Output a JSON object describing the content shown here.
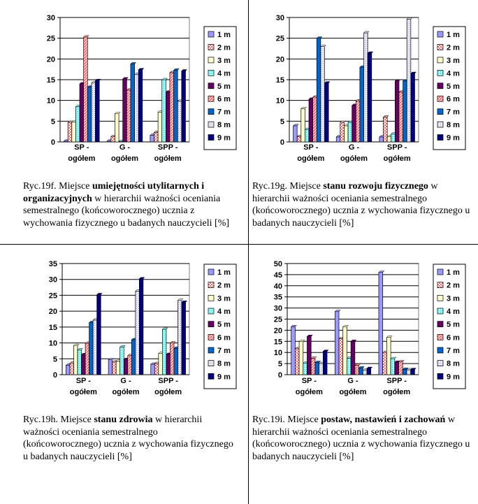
{
  "legend_labels": [
    "1 m",
    "2 m",
    "3 m",
    "4 m",
    "5 m",
    "6 m",
    "7 m",
    "8 m",
    "9 m"
  ],
  "series_colors": [
    "#9999ff",
    "#ffffff",
    "#ffffcc",
    "#ccffff",
    "#660066",
    "#ff8080",
    "#0066cc",
    "#ccccff",
    "#000080"
  ],
  "series_patterns": [
    "solid",
    "pink-check",
    "solid",
    "cyan-dots",
    "solid",
    "red-stripe",
    "solid",
    "light-dots",
    "solid"
  ],
  "categories": [
    [
      "SP -",
      "ogółem"
    ],
    [
      "G -",
      "ogółem"
    ],
    [
      "SPP -",
      "ogółem"
    ]
  ],
  "chart_data": [
    {
      "type": "bar",
      "categories": [
        "SP - ogółem",
        "G - ogółem",
        "SPP - ogółem"
      ],
      "ylim": [
        0,
        30
      ],
      "yticks": [
        0,
        5,
        10,
        15,
        20,
        25,
        30
      ],
      "series": [
        {
          "name": "1 m",
          "values": [
            0.2,
            0.2,
            1.6
          ]
        },
        {
          "name": "2 m",
          "values": [
            4.7,
            1.3,
            2.3
          ]
        },
        {
          "name": "3 m",
          "values": [
            4.8,
            6.8,
            7.2
          ]
        },
        {
          "name": "4 m",
          "values": [
            8.5,
            0.1,
            15.0
          ]
        },
        {
          "name": "5 m",
          "values": [
            14.0,
            15.2,
            12.0
          ]
        },
        {
          "name": "6 m",
          "values": [
            25.3,
            12.5,
            16.7
          ]
        },
        {
          "name": "7 m",
          "values": [
            13.2,
            18.8,
            17.3
          ]
        },
        {
          "name": "8 m",
          "values": [
            14.2,
            16.3,
            9.8
          ]
        },
        {
          "name": "9 m",
          "values": [
            14.8,
            17.4,
            17.1
          ]
        }
      ]
    },
    {
      "type": "bar",
      "categories": [
        "SP - ogółem",
        "G - ogółem",
        "SPP - ogółem"
      ],
      "ylim": [
        0,
        30
      ],
      "yticks": [
        0,
        5,
        10,
        15,
        20,
        25,
        30
      ],
      "series": [
        {
          "name": "1 m",
          "values": [
            3.9,
            1.2,
            1.2
          ]
        },
        {
          "name": "2 m",
          "values": [
            1.3,
            4.7,
            6.0
          ]
        },
        {
          "name": "3 m",
          "values": [
            8.0,
            3.9,
            1.3
          ]
        },
        {
          "name": "4 m",
          "values": [
            3.0,
            4.7,
            1.9
          ]
        },
        {
          "name": "5 m",
          "values": [
            10.3,
            8.8,
            14.7
          ]
        },
        {
          "name": "6 m",
          "values": [
            10.8,
            9.9,
            12.0
          ]
        },
        {
          "name": "7 m",
          "values": [
            25.0,
            18.0,
            14.7
          ]
        },
        {
          "name": "8 m",
          "values": [
            23.0,
            26.3,
            29.6
          ]
        },
        {
          "name": "9 m",
          "values": [
            14.2,
            21.4,
            16.5
          ]
        }
      ]
    },
    {
      "type": "bar",
      "categories": [
        "SP - ogółem",
        "G - ogółem",
        "SPP - ogółem"
      ],
      "ylim": [
        0,
        35
      ],
      "yticks": [
        0,
        5,
        10,
        15,
        20,
        25,
        30,
        35
      ],
      "series": [
        {
          "name": "1 m",
          "values": [
            3.0,
            4.7,
            3.3
          ]
        },
        {
          "name": "2 m",
          "values": [
            3.7,
            4.0,
            3.5
          ]
        },
        {
          "name": "3 m",
          "values": [
            9.2,
            4.2,
            6.7
          ]
        },
        {
          "name": "4 m",
          "values": [
            7.8,
            8.7,
            14.3
          ]
        },
        {
          "name": "5 m",
          "values": [
            6.3,
            4.8,
            6.4
          ]
        },
        {
          "name": "6 m",
          "values": [
            9.9,
            6.0,
            10.0
          ]
        },
        {
          "name": "7 m",
          "values": [
            16.4,
            11.0,
            8.3
          ]
        },
        {
          "name": "8 m",
          "values": [
            17.2,
            26.3,
            23.4
          ]
        },
        {
          "name": "9 m",
          "values": [
            25.2,
            30.2,
            22.8
          ]
        }
      ]
    },
    {
      "type": "bar",
      "categories": [
        "SP - ogółem",
        "G - ogółem",
        "SPP - ogółem"
      ],
      "ylim": [
        0,
        50
      ],
      "yticks": [
        0,
        5,
        10,
        15,
        20,
        25,
        30,
        35,
        40,
        45,
        50
      ],
      "series": [
        {
          "name": "1 m",
          "values": [
            21.6,
            28.4,
            46.0
          ]
        },
        {
          "name": "2 m",
          "values": [
            11.7,
            16.2,
            10.0
          ]
        },
        {
          "name": "3 m",
          "values": [
            14.9,
            21.5,
            16.8
          ]
        },
        {
          "name": "4 m",
          "values": [
            5.2,
            7.4,
            7.2
          ]
        },
        {
          "name": "5 m",
          "values": [
            17.2,
            15.0,
            5.6
          ]
        },
        {
          "name": "6 m",
          "values": [
            7.4,
            4.3,
            5.8
          ]
        },
        {
          "name": "7 m",
          "values": [
            5.5,
            3.0,
            2.4
          ]
        },
        {
          "name": "8 m",
          "values": [
            5.0,
            2.0,
            2.2
          ]
        },
        {
          "name": "9 m",
          "values": [
            10.5,
            2.8,
            2.3
          ]
        }
      ]
    }
  ],
  "captions": [
    {
      "prefix": "Ryc.19f. Miejsce ",
      "bold": "umiejętności utylitarnych i organizacyjnych",
      "suffix": " w hierarchii ważności oceniania semestralnego (końcoworocznego) ucznia z wychowania fizycznego u badanych nauczycieli [%]"
    },
    {
      "prefix": "Ryc.19g. Miejsce ",
      "bold": "stanu rozwoju fizycznego",
      "suffix": " w hierarchii ważności oceniania semestralnego (końcoworocznego) ucznia z wychowania fizycznego u badanych nauczycieli [%]"
    },
    {
      "prefix": "Ryc.19h. Miejsce ",
      "bold": "stanu zdrowia",
      "suffix": " w hierarchii ważności oceniania semestralnego (końcoworocznego) ucznia z wychowania fizycznego u badanych nauczycieli [%]"
    },
    {
      "prefix": "Ryc.19i. Miejsce ",
      "bold": "postaw, nastawień i zachowań",
      "suffix": " w hierarchii ważności oceniania semestralnego (końcoworocznego) ucznia z wychowania fizycznego u badanych nauczycieli [%]"
    }
  ]
}
